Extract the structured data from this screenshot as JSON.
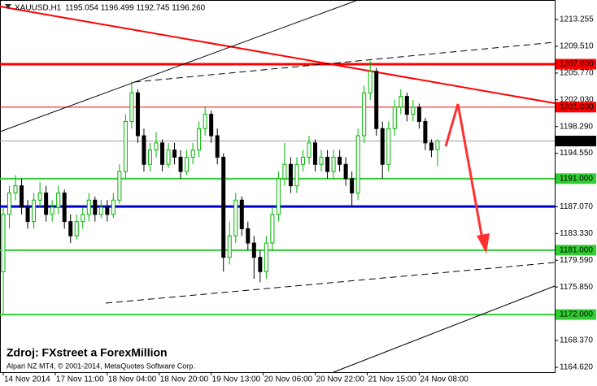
{
  "chart_data": {
    "type": "candlestick",
    "symbol": "XAUUSD,H1",
    "info": "1195.054 1196.499 1192.745 1196.260",
    "source": "Zdroj: FXstreet a ForexMillion",
    "copyright": "Alpari NZ MT4, © 2001-2014, MetaQuotes Software Corp.",
    "up_color": "#00b400",
    "down_color": "#000000",
    "ylim": [
      1163.94,
      1215.98
    ],
    "yticks": [
      1213.255,
      {
        "value": 1209.51,
        "label": "1209.510"
      },
      {
        "value": 1205.77,
        "label": "1205.770"
      },
      {
        "value": 1202.03,
        "label": "1202.030"
      },
      {
        "value": 1198.29,
        "label": "1198.290"
      },
      {
        "value": 1194.55,
        "label": "1194.550"
      },
      {
        "value": 1187.07,
        "label": "1187.070"
      },
      {
        "value": 1183.33,
        "label": "1183.330"
      },
      {
        "value": 1179.59,
        "label": "1179.590"
      },
      {
        "value": 1175.85,
        "label": "1175.850"
      },
      {
        "value": 1168.37,
        "label": "1168.370"
      },
      {
        "value": 1164.62,
        "label": "1164.620"
      }
    ],
    "xticks": [
      {
        "value": 0,
        "label": "14 Nov 2014"
      },
      {
        "value": 8.5,
        "label": "17 Nov 11:00"
      },
      {
        "value": 17,
        "label": "18 Nov 04:00"
      },
      {
        "value": 25.5,
        "label": "18 Nov 20:00"
      },
      {
        "value": 34,
        "label": "19 Nov 13:00"
      },
      {
        "value": 42.5,
        "label": "20 Nov 06:00"
      },
      {
        "value": 51,
        "label": "20 Nov 22:00"
      },
      {
        "value": 59.5,
        "label": "21 Nov 15:00"
      },
      {
        "value": 68,
        "label": "24 Nov 08:00"
      }
    ],
    "levels": [
      {
        "value": 1207,
        "label": "1207.000",
        "color": "#ff0000",
        "width": 3,
        "text_color": "#ffffff"
      },
      {
        "value": 1201,
        "label": "1201.000",
        "color": "#ff0000",
        "width": 1,
        "text_color": "#ffffff"
      },
      {
        "value": 1196.26,
        "label": "1196.260",
        "color": "#a0a0a0",
        "width": 1,
        "text_color": "#ffffff",
        "box_color": "#000000"
      },
      {
        "value": 1191,
        "label": "1191.000",
        "color": "#32cd32",
        "width": 2,
        "text_color": "#000000"
      },
      {
        "value": 1187.1,
        "color": "#0000cd",
        "width": 3
      },
      {
        "value": 1181,
        "label": "1181.000",
        "color": "#32cd32",
        "width": 2,
        "text_color": "#000000"
      },
      {
        "value": 1172,
        "label": "1172.000",
        "color": "#32cd32",
        "width": 2,
        "text_color": "#000000"
      }
    ],
    "open": [
      1178,
      1186,
      1189,
      1190,
      1187,
      1185,
      1188,
      1189,
      1186,
      1187,
      1189,
      1185,
      1183,
      1185,
      1186,
      1188,
      1186,
      1187,
      1186,
      1188,
      1192,
      1199,
      1203,
      1197,
      1193,
      1195,
      1196,
      1193,
      1195,
      1194,
      1192,
      1194,
      1195,
      1198,
      1200,
      1197,
      1194,
      1180,
      1183,
      1188,
      1184,
      1182,
      1180,
      1178,
      1182,
      1186,
      1191,
      1193,
      1190,
      1193,
      1194,
      1196,
      1193,
      1194,
      1192,
      1194,
      1193,
      1191,
      1189,
      1197,
      1203,
      1206,
      1198,
      1193,
      1198,
      1201,
      1202.5,
      1200,
      1201,
      1199,
      1196,
      1195.054
    ],
    "high": [
      1187,
      1190,
      1191.5,
      1191,
      1188,
      1189,
      1190.5,
      1190,
      1188,
      1190,
      1189.5,
      1186,
      1186,
      1187,
      1189,
      1188.5,
      1188,
      1188,
      1189,
      1193,
      1200,
      1204.6,
      1203.5,
      1198,
      1196,
      1197.5,
      1196.5,
      1196,
      1196,
      1195,
      1195,
      1196,
      1199,
      1201,
      1200.5,
      1198,
      1194.5,
      1185,
      1189,
      1188.5,
      1185,
      1183,
      1181,
      1183,
      1187,
      1192,
      1196,
      1194,
      1194,
      1195,
      1197,
      1196.5,
      1195,
      1195,
      1195,
      1195,
      1194,
      1192,
      1198,
      1204,
      1207.5,
      1206.5,
      1199,
      1199,
      1202,
      1203.5,
      1203,
      1202,
      1201.5,
      1199.5,
      1196.5,
      1196.499
    ],
    "low": [
      1172,
      1184,
      1188,
      1186,
      1184,
      1184,
      1187,
      1185,
      1185,
      1186,
      1184,
      1182,
      1182.5,
      1184,
      1185,
      1185,
      1185.5,
      1185,
      1185.5,
      1187.5,
      1191,
      1198,
      1196,
      1192,
      1192,
      1194,
      1192,
      1192.5,
      1193,
      1191,
      1191.5,
      1193,
      1194,
      1197,
      1196,
      1193,
      1178,
      1179,
      1182,
      1183,
      1181,
      1177,
      1176.5,
      1177,
      1181,
      1185,
      1190,
      1189,
      1189,
      1192,
      1193,
      1192,
      1192,
      1191,
      1191,
      1192,
      1190,
      1187,
      1188,
      1196,
      1202,
      1197,
      1191,
      1192,
      1197,
      1200,
      1199,
      1199,
      1198,
      1195,
      1194,
      1192.745
    ],
    "close": [
      1186,
      1189,
      1190,
      1187,
      1185,
      1188,
      1189,
      1186,
      1187,
      1189,
      1185,
      1183,
      1185,
      1186,
      1188,
      1186,
      1187,
      1186,
      1188,
      1192,
      1199,
      1203,
      1197,
      1193,
      1195,
      1196,
      1193,
      1195,
      1194,
      1192,
      1194,
      1195,
      1198,
      1200,
      1197,
      1194,
      1180,
      1183,
      1188,
      1184,
      1182,
      1180,
      1178,
      1182,
      1186,
      1191,
      1193,
      1190,
      1193,
      1194,
      1196,
      1193,
      1194,
      1192,
      1194,
      1193,
      1191,
      1189,
      1197,
      1203,
      1206,
      1198,
      1193,
      1198,
      1201,
      1202.5,
      1200,
      1201,
      1199,
      1196,
      1195,
      1196.26
    ]
  }
}
